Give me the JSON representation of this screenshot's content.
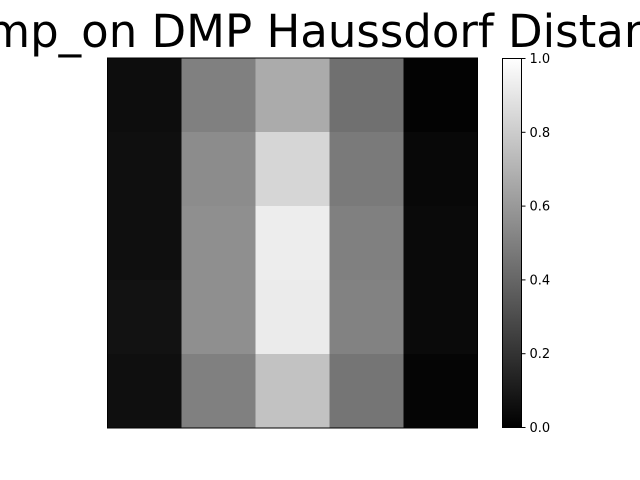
{
  "chart_data": {
    "type": "heatmap",
    "title": "_dmp_on DMP Haussdorf Distance",
    "colormap": "gray",
    "vmin": 0.0,
    "vmax": 1.0,
    "rows": 5,
    "cols": 5,
    "values": [
      [
        0.05,
        0.5,
        0.67,
        0.44,
        0.01
      ],
      [
        0.06,
        0.55,
        0.84,
        0.48,
        0.03
      ],
      [
        0.06,
        0.56,
        0.93,
        0.5,
        0.04
      ],
      [
        0.07,
        0.56,
        0.92,
        0.51,
        0.04
      ],
      [
        0.06,
        0.5,
        0.76,
        0.46,
        0.02
      ]
    ],
    "colorbar": {
      "ticks": [
        0.0,
        0.2,
        0.4,
        0.6,
        0.8,
        1.0
      ],
      "tick_labels": [
        "0.0",
        "0.2",
        "0.4",
        "0.6",
        "0.8",
        "1.0"
      ]
    },
    "grid": false
  }
}
